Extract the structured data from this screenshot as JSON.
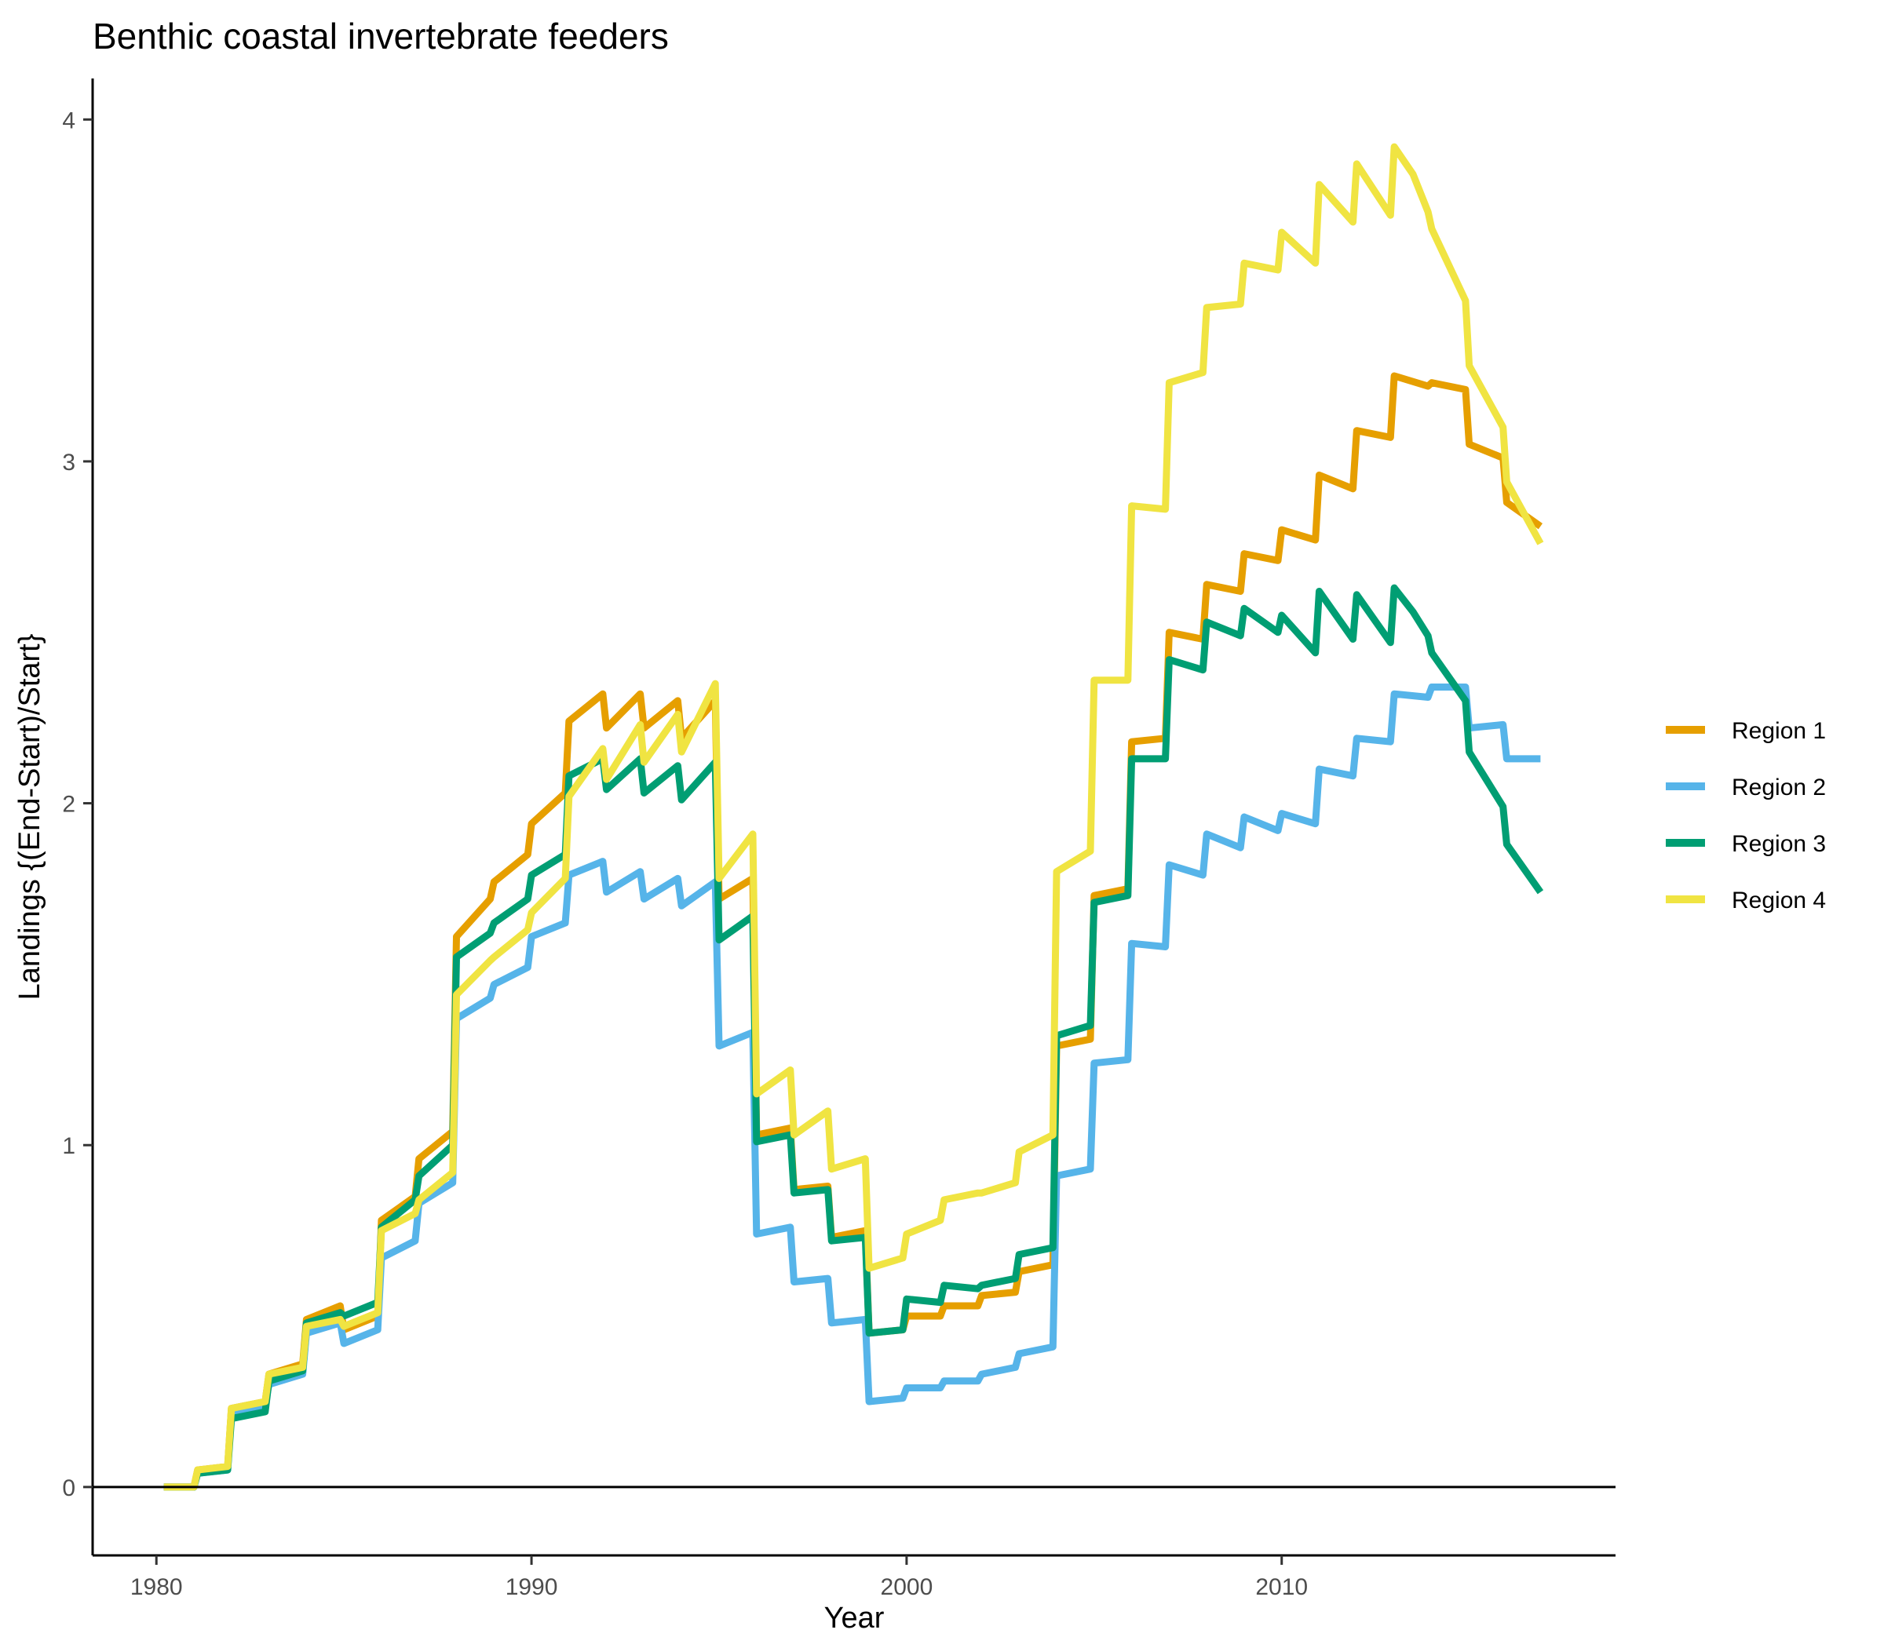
{
  "chart_data": {
    "type": "line",
    "title": "Benthic coastal invertebrate feeders",
    "xlabel": "Year",
    "ylabel": "Landings {(End-Start)/Start}",
    "xlim": [
      1978.3,
      2018.9
    ],
    "ylim": [
      -0.2,
      4.12
    ],
    "x_ticks": [
      1980,
      1990,
      2000,
      2010
    ],
    "y_ticks": [
      0,
      1,
      2,
      3,
      4
    ],
    "reference_line_y": 0,
    "grid": false,
    "legend_position": "right",
    "series": [
      {
        "name": "Region 1",
        "color": "#E69F00",
        "points": [
          [
            1980.2,
            0
          ],
          [
            1981,
            0
          ],
          [
            1981.1,
            0.05
          ],
          [
            1981.9,
            0.06
          ],
          [
            1982,
            0.23
          ],
          [
            1982.9,
            0.25
          ],
          [
            1983,
            0.33
          ],
          [
            1983.9,
            0.36
          ],
          [
            1984,
            0.49
          ],
          [
            1984.9,
            0.53
          ],
          [
            1985,
            0.46
          ],
          [
            1985.9,
            0.5
          ],
          [
            1986,
            0.78
          ],
          [
            1986.9,
            0.85
          ],
          [
            1987,
            0.96
          ],
          [
            1987.9,
            1.04
          ],
          [
            1988,
            1.61
          ],
          [
            1988.9,
            1.72
          ],
          [
            1989,
            1.77
          ],
          [
            1989.9,
            1.85
          ],
          [
            1990,
            1.94
          ],
          [
            1990.9,
            2.03
          ],
          [
            1991,
            2.24
          ],
          [
            1991.9,
            2.32
          ],
          [
            1992,
            2.22
          ],
          [
            1992.9,
            2.32
          ],
          [
            1993,
            2.22
          ],
          [
            1993.9,
            2.3
          ],
          [
            1994,
            2.19
          ],
          [
            1994.9,
            2.3
          ],
          [
            1995,
            1.72
          ],
          [
            1995.9,
            1.78
          ],
          [
            1996,
            1.03
          ],
          [
            1996.9,
            1.05
          ],
          [
            1997,
            0.87
          ],
          [
            1997.9,
            0.88
          ],
          [
            1998,
            0.73
          ],
          [
            1998.9,
            0.75
          ],
          [
            1999,
            0.45
          ],
          [
            1999.9,
            0.46
          ],
          [
            2000,
            0.5
          ],
          [
            2000.9,
            0.5
          ],
          [
            2001,
            0.53
          ],
          [
            2001.9,
            0.53
          ],
          [
            2002,
            0.56
          ],
          [
            2002.9,
            0.57
          ],
          [
            2003,
            0.63
          ],
          [
            2003.9,
            0.65
          ],
          [
            2004,
            1.29
          ],
          [
            2004.9,
            1.31
          ],
          [
            2005,
            1.73
          ],
          [
            2005.9,
            1.75
          ],
          [
            2006,
            2.18
          ],
          [
            2006.9,
            2.19
          ],
          [
            2007,
            2.5
          ],
          [
            2007.9,
            2.48
          ],
          [
            2008,
            2.64
          ],
          [
            2008.9,
            2.62
          ],
          [
            2009,
            2.73
          ],
          [
            2009.9,
            2.71
          ],
          [
            2010,
            2.8
          ],
          [
            2010.9,
            2.77
          ],
          [
            2011,
            2.96
          ],
          [
            2011.9,
            2.92
          ],
          [
            2012,
            3.09
          ],
          [
            2012.9,
            3.07
          ],
          [
            2013,
            3.25
          ],
          [
            2013.9,
            3.22
          ],
          [
            2014,
            3.23
          ],
          [
            2014.9,
            3.21
          ],
          [
            2015,
            3.05
          ],
          [
            2015.9,
            3.01
          ],
          [
            2016,
            2.88
          ],
          [
            2016.9,
            2.81
          ]
        ]
      },
      {
        "name": "Region 2",
        "color": "#56B4E9",
        "points": [
          [
            1980.2,
            0
          ],
          [
            1981,
            0
          ],
          [
            1981.1,
            0.04
          ],
          [
            1981.9,
            0.05
          ],
          [
            1982,
            0.22
          ],
          [
            1982.9,
            0.24
          ],
          [
            1983,
            0.3
          ],
          [
            1983.9,
            0.33
          ],
          [
            1984,
            0.45
          ],
          [
            1984.9,
            0.48
          ],
          [
            1985,
            0.42
          ],
          [
            1985.9,
            0.46
          ],
          [
            1986,
            0.67
          ],
          [
            1986.9,
            0.72
          ],
          [
            1987,
            0.83
          ],
          [
            1987.9,
            0.89
          ],
          [
            1988,
            1.37
          ],
          [
            1988.9,
            1.43
          ],
          [
            1989,
            1.47
          ],
          [
            1989.9,
            1.52
          ],
          [
            1990,
            1.61
          ],
          [
            1990.9,
            1.65
          ],
          [
            1991,
            1.79
          ],
          [
            1991.9,
            1.83
          ],
          [
            1992,
            1.74
          ],
          [
            1992.9,
            1.8
          ],
          [
            1993,
            1.72
          ],
          [
            1993.9,
            1.78
          ],
          [
            1994,
            1.7
          ],
          [
            1994.9,
            1.77
          ],
          [
            1995,
            1.29
          ],
          [
            1995.9,
            1.33
          ],
          [
            1996,
            0.74
          ],
          [
            1996.9,
            0.76
          ],
          [
            1997,
            0.6
          ],
          [
            1997.9,
            0.61
          ],
          [
            1998,
            0.48
          ],
          [
            1998.9,
            0.49
          ],
          [
            1999,
            0.25
          ],
          [
            1999.9,
            0.26
          ],
          [
            2000,
            0.29
          ],
          [
            2000.9,
            0.29
          ],
          [
            2001,
            0.31
          ],
          [
            2001.9,
            0.31
          ],
          [
            2002,
            0.33
          ],
          [
            2002.9,
            0.35
          ],
          [
            2003,
            0.39
          ],
          [
            2003.9,
            0.41
          ],
          [
            2004,
            0.91
          ],
          [
            2004.9,
            0.93
          ],
          [
            2005,
            1.24
          ],
          [
            2005.9,
            1.25
          ],
          [
            2006,
            1.59
          ],
          [
            2006.9,
            1.58
          ],
          [
            2007,
            1.82
          ],
          [
            2007.9,
            1.79
          ],
          [
            2008,
            1.91
          ],
          [
            2008.9,
            1.87
          ],
          [
            2009,
            1.96
          ],
          [
            2009.9,
            1.92
          ],
          [
            2010,
            1.97
          ],
          [
            2010.9,
            1.94
          ],
          [
            2011,
            2.1
          ],
          [
            2011.9,
            2.08
          ],
          [
            2012,
            2.19
          ],
          [
            2012.9,
            2.18
          ],
          [
            2013,
            2.32
          ],
          [
            2013.9,
            2.31
          ],
          [
            2014,
            2.34
          ],
          [
            2014.9,
            2.34
          ],
          [
            2015,
            2.22
          ],
          [
            2015.9,
            2.23
          ],
          [
            2016,
            2.13
          ],
          [
            2016.9,
            2.13
          ]
        ]
      },
      {
        "name": "Region 3",
        "color": "#009E73",
        "points": [
          [
            1980.2,
            0
          ],
          [
            1981,
            0
          ],
          [
            1981.1,
            0.04
          ],
          [
            1981.9,
            0.05
          ],
          [
            1982,
            0.2
          ],
          [
            1982.9,
            0.22
          ],
          [
            1983,
            0.31
          ],
          [
            1983.9,
            0.34
          ],
          [
            1984,
            0.48
          ],
          [
            1984.9,
            0.51
          ],
          [
            1985,
            0.5
          ],
          [
            1985.9,
            0.54
          ],
          [
            1986,
            0.76
          ],
          [
            1986.9,
            0.84
          ],
          [
            1987,
            0.91
          ],
          [
            1987.9,
            1.0
          ],
          [
            1988,
            1.55
          ],
          [
            1988.9,
            1.62
          ],
          [
            1989,
            1.65
          ],
          [
            1989.9,
            1.72
          ],
          [
            1990,
            1.79
          ],
          [
            1990.9,
            1.85
          ],
          [
            1991,
            2.08
          ],
          [
            1991.9,
            2.13
          ],
          [
            1992,
            2.04
          ],
          [
            1992.9,
            2.13
          ],
          [
            1993,
            2.03
          ],
          [
            1993.9,
            2.11
          ],
          [
            1994,
            2.01
          ],
          [
            1994.9,
            2.12
          ],
          [
            1995,
            1.6
          ],
          [
            1995.9,
            1.67
          ],
          [
            1996,
            1.01
          ],
          [
            1996.9,
            1.03
          ],
          [
            1997,
            0.86
          ],
          [
            1997.9,
            0.87
          ],
          [
            1998,
            0.72
          ],
          [
            1998.9,
            0.73
          ],
          [
            1999,
            0.45
          ],
          [
            1999.9,
            0.46
          ],
          [
            2000,
            0.55
          ],
          [
            2000.9,
            0.54
          ],
          [
            2001,
            0.59
          ],
          [
            2001.9,
            0.58
          ],
          [
            2002,
            0.59
          ],
          [
            2002.9,
            0.61
          ],
          [
            2003,
            0.68
          ],
          [
            2003.9,
            0.7
          ],
          [
            2004,
            1.32
          ],
          [
            2004.9,
            1.35
          ],
          [
            2005,
            1.71
          ],
          [
            2005.9,
            1.73
          ],
          [
            2006,
            2.13
          ],
          [
            2006.9,
            2.13
          ],
          [
            2007,
            2.42
          ],
          [
            2007.9,
            2.39
          ],
          [
            2008,
            2.53
          ],
          [
            2008.9,
            2.49
          ],
          [
            2009,
            2.57
          ],
          [
            2009.9,
            2.5
          ],
          [
            2010,
            2.55
          ],
          [
            2010.9,
            2.44
          ],
          [
            2011,
            2.62
          ],
          [
            2011.9,
            2.48
          ],
          [
            2012,
            2.61
          ],
          [
            2012.9,
            2.47
          ],
          [
            2013,
            2.63
          ],
          [
            2013.5,
            2.56
          ],
          [
            2013.9,
            2.49
          ],
          [
            2014,
            2.44
          ],
          [
            2014.9,
            2.3
          ],
          [
            2015,
            2.15
          ],
          [
            2015.9,
            1.99
          ],
          [
            2016,
            1.88
          ],
          [
            2016.9,
            1.74
          ]
        ]
      },
      {
        "name": "Region 4",
        "color": "#F0E442",
        "points": [
          [
            1980.2,
            0
          ],
          [
            1981,
            0
          ],
          [
            1981.1,
            0.05
          ],
          [
            1981.9,
            0.06
          ],
          [
            1982,
            0.23
          ],
          [
            1982.9,
            0.25
          ],
          [
            1983,
            0.33
          ],
          [
            1983.9,
            0.35
          ],
          [
            1984,
            0.47
          ],
          [
            1984.9,
            0.49
          ],
          [
            1985,
            0.47
          ],
          [
            1985.9,
            0.51
          ],
          [
            1986,
            0.75
          ],
          [
            1986.9,
            0.8
          ],
          [
            1987,
            0.84
          ],
          [
            1987.9,
            0.92
          ],
          [
            1988,
            1.44
          ],
          [
            1988.9,
            1.54
          ],
          [
            1989,
            1.55
          ],
          [
            1989.9,
            1.63
          ],
          [
            1990,
            1.68
          ],
          [
            1990.9,
            1.78
          ],
          [
            1991,
            2.02
          ],
          [
            1991.9,
            2.16
          ],
          [
            1992,
            2.07
          ],
          [
            1992.9,
            2.23
          ],
          [
            1993,
            2.12
          ],
          [
            1993.9,
            2.26
          ],
          [
            1994,
            2.15
          ],
          [
            1994.9,
            2.35
          ],
          [
            1995,
            1.78
          ],
          [
            1995.9,
            1.91
          ],
          [
            1996,
            1.15
          ],
          [
            1996.9,
            1.22
          ],
          [
            1997,
            1.03
          ],
          [
            1997.9,
            1.1
          ],
          [
            1998,
            0.93
          ],
          [
            1998.9,
            0.96
          ],
          [
            1999,
            0.64
          ],
          [
            1999.9,
            0.67
          ],
          [
            2000,
            0.74
          ],
          [
            2000.9,
            0.78
          ],
          [
            2001,
            0.84
          ],
          [
            2001.9,
            0.86
          ],
          [
            2002,
            0.86
          ],
          [
            2002.9,
            0.89
          ],
          [
            2003,
            0.98
          ],
          [
            2003.9,
            1.03
          ],
          [
            2004,
            1.8
          ],
          [
            2004.9,
            1.86
          ],
          [
            2005,
            2.36
          ],
          [
            2005.9,
            2.36
          ],
          [
            2006,
            2.87
          ],
          [
            2006.9,
            2.86
          ],
          [
            2007,
            3.23
          ],
          [
            2007.9,
            3.26
          ],
          [
            2008,
            3.45
          ],
          [
            2008.9,
            3.46
          ],
          [
            2009,
            3.58
          ],
          [
            2009.9,
            3.56
          ],
          [
            2010,
            3.67
          ],
          [
            2010.9,
            3.58
          ],
          [
            2011,
            3.81
          ],
          [
            2011.9,
            3.7
          ],
          [
            2012,
            3.87
          ],
          [
            2012.9,
            3.72
          ],
          [
            2013,
            3.92
          ],
          [
            2013.5,
            3.84
          ],
          [
            2013.9,
            3.73
          ],
          [
            2014,
            3.68
          ],
          [
            2014.9,
            3.47
          ],
          [
            2015,
            3.28
          ],
          [
            2015.9,
            3.1
          ],
          [
            2016,
            2.94
          ],
          [
            2016.9,
            2.76
          ]
        ]
      }
    ]
  }
}
